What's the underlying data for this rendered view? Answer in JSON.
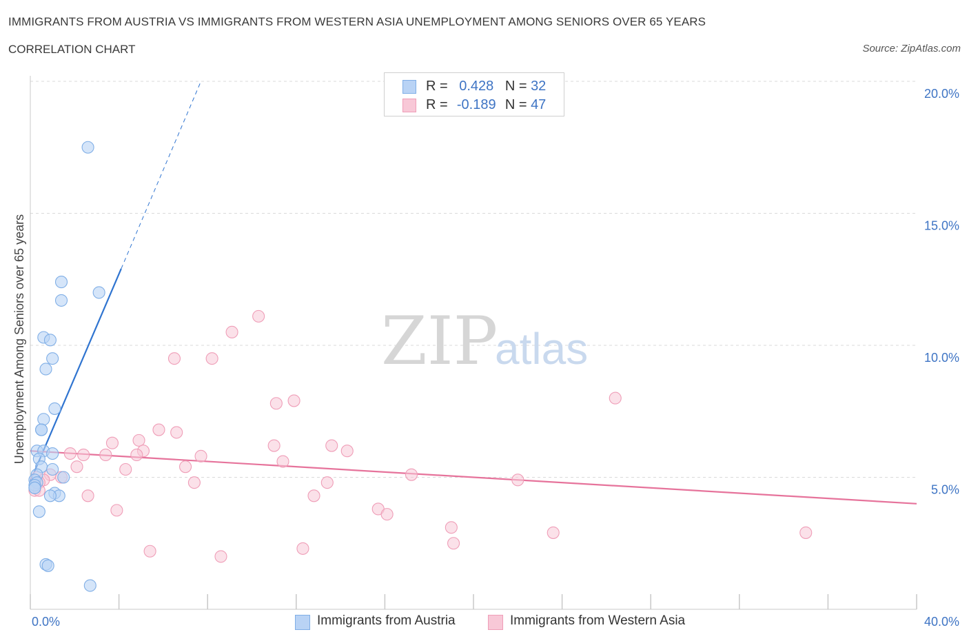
{
  "header": {
    "title": "IMMIGRANTS FROM AUSTRIA VS IMMIGRANTS FROM WESTERN ASIA UNEMPLOYMENT AMONG SENIORS OVER 65 YEARS",
    "subtitle": "CORRELATION CHART",
    "source": "Source: ZipAtlas.com"
  },
  "watermark": {
    "zip": "ZIP",
    "atlas": "atlas"
  },
  "legend": {
    "austria": {
      "r_label": "R =",
      "r_value": "0.428",
      "n_label": "N =",
      "n_value": "32"
    },
    "western_asia": {
      "r_label": "R =",
      "r_value": "-0.189",
      "n_label": "N =",
      "n_value": "47"
    }
  },
  "colors": {
    "austria_fill": "#b9d3f5",
    "austria_stroke": "#7faee6",
    "austria_line": "#2f74d0",
    "western_asia_fill": "#f8c8d7",
    "western_asia_stroke": "#ef9db7",
    "western_asia_line": "#e6739b",
    "grid": "#d9d9d9",
    "tick_text": "#3e74c4"
  },
  "chart_data": {
    "type": "scatter",
    "title": "IMMIGRANTS FROM AUSTRIA VS IMMIGRANTS FROM WESTERN ASIA UNEMPLOYMENT AMONG SENIORS OVER 65 YEARS",
    "xlabel": "",
    "ylabel": "Unemployment Among Seniors over 65 years",
    "xlim": [
      0,
      40
    ],
    "ylim": [
      0,
      20
    ],
    "x_tick_labels": [
      "0.0%",
      "40.0%"
    ],
    "y_ticks": [
      5,
      10,
      15,
      20
    ],
    "y_tick_labels": [
      "5.0%",
      "10.0%",
      "15.0%",
      "20.0%"
    ],
    "grid": true,
    "series": [
      {
        "name": "Immigrants from Austria",
        "points": [
          [
            2.6,
            17.5
          ],
          [
            1.4,
            12.4
          ],
          [
            3.1,
            12.0
          ],
          [
            1.4,
            11.7
          ],
          [
            0.6,
            10.3
          ],
          [
            0.9,
            10.2
          ],
          [
            1.0,
            9.5
          ],
          [
            0.7,
            9.1
          ],
          [
            1.1,
            7.6
          ],
          [
            0.6,
            7.2
          ],
          [
            0.5,
            6.8
          ],
          [
            0.5,
            6.8
          ],
          [
            0.3,
            6.0
          ],
          [
            0.6,
            6.0
          ],
          [
            1.0,
            5.9
          ],
          [
            0.4,
            5.7
          ],
          [
            0.5,
            5.4
          ],
          [
            1.0,
            5.3
          ],
          [
            0.3,
            5.1
          ],
          [
            1.5,
            5.0
          ],
          [
            0.2,
            4.9
          ],
          [
            0.3,
            4.8
          ],
          [
            0.2,
            4.7
          ],
          [
            0.2,
            4.6
          ],
          [
            0.2,
            4.6
          ],
          [
            1.1,
            4.4
          ],
          [
            1.3,
            4.3
          ],
          [
            0.9,
            4.3
          ],
          [
            0.4,
            3.7
          ],
          [
            0.7,
            1.7
          ],
          [
            0.8,
            1.65
          ],
          [
            2.7,
            0.9
          ]
        ],
        "trend": {
          "x0": 0.0,
          "y0": 4.85,
          "x1": 4.1,
          "y1": 12.9,
          "dashed_to_x": 7.7,
          "dashed_to_y": 20.0
        }
      },
      {
        "name": "Immigrants from Western Asia",
        "points": [
          [
            10.3,
            11.1
          ],
          [
            9.1,
            10.5
          ],
          [
            6.5,
            9.5
          ],
          [
            8.2,
            9.5
          ],
          [
            26.4,
            8.0
          ],
          [
            11.9,
            7.9
          ],
          [
            11.1,
            7.8
          ],
          [
            5.8,
            6.8
          ],
          [
            6.6,
            6.7
          ],
          [
            4.9,
            6.4
          ],
          [
            3.7,
            6.3
          ],
          [
            11.0,
            6.2
          ],
          [
            13.6,
            6.2
          ],
          [
            14.3,
            6.0
          ],
          [
            5.1,
            6.0
          ],
          [
            1.8,
            5.9
          ],
          [
            2.4,
            5.85
          ],
          [
            3.4,
            5.85
          ],
          [
            4.8,
            5.85
          ],
          [
            7.7,
            5.8
          ],
          [
            11.4,
            5.6
          ],
          [
            2.1,
            5.4
          ],
          [
            7.0,
            5.4
          ],
          [
            4.3,
            5.3
          ],
          [
            17.2,
            5.1
          ],
          [
            0.9,
            5.1
          ],
          [
            1.4,
            5.0
          ],
          [
            0.3,
            5.0
          ],
          [
            0.6,
            4.9
          ],
          [
            22.0,
            4.9
          ],
          [
            0.4,
            4.8
          ],
          [
            7.4,
            4.8
          ],
          [
            13.4,
            4.8
          ],
          [
            0.2,
            4.5
          ],
          [
            0.4,
            4.5
          ],
          [
            2.6,
            4.3
          ],
          [
            12.8,
            4.3
          ],
          [
            15.7,
            3.8
          ],
          [
            3.9,
            3.75
          ],
          [
            16.1,
            3.6
          ],
          [
            19.0,
            3.1
          ],
          [
            23.6,
            2.9
          ],
          [
            35.0,
            2.9
          ],
          [
            19.1,
            2.5
          ],
          [
            12.3,
            2.3
          ],
          [
            5.4,
            2.2
          ],
          [
            8.6,
            2.0
          ]
        ],
        "trend": {
          "x0": 0.0,
          "y0": 6.0,
          "x1": 40.0,
          "y1": 4.0
        }
      }
    ]
  },
  "bottom_legend": {
    "austria_label": "Immigrants from Austria",
    "western_asia_label": "Immigrants from Western Asia"
  }
}
